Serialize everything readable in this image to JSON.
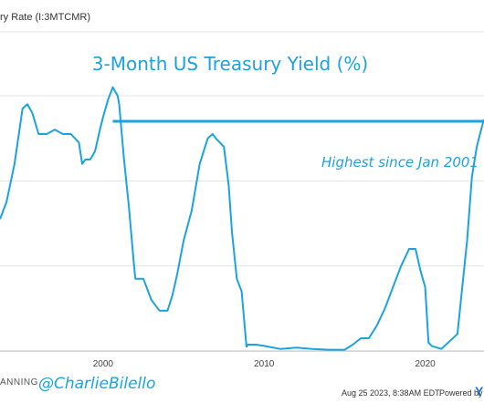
{
  "header": {
    "series_label": "ry Rate (I:3MTCMR)"
  },
  "chart_data": {
    "type": "line",
    "title": "3-Month US Treasury Yield (%)",
    "annotation": "Highest since Jan 2001",
    "reference_line_y": 5.4,
    "xlabel": "",
    "ylabel": "",
    "x_ticks": [
      "2000",
      "2010",
      "2020"
    ],
    "xlim": [
      1993.6,
      2023.65
    ],
    "ylim": [
      0,
      7.5
    ],
    "grid": true,
    "line_color": "#1aa3df",
    "series": [
      {
        "x": [
          1993.6,
          1994.0,
          1994.5,
          1995.0,
          1995.3,
          1995.6,
          1996.0,
          1996.5,
          1997.0,
          1997.5,
          1998.0,
          1998.5,
          1998.7,
          1998.9,
          1999.2,
          1999.5,
          1999.8,
          2000.0,
          2000.3,
          2000.6,
          2000.9,
          2001.0,
          2001.3,
          2001.6,
          2001.9,
          2002.0,
          2002.5,
          2003.0,
          2003.5,
          2004.0,
          2004.3,
          2004.6,
          2005.0,
          2005.5,
          2006.0,
          2006.5,
          2006.8,
          2007.0,
          2007.5,
          2007.8,
          2008.0,
          2008.3,
          2008.6,
          2008.9,
          2009.0,
          2009.5,
          2010.0,
          2011.0,
          2012.0,
          2013.0,
          2014.0,
          2015.0,
          2015.5,
          2016.0,
          2016.5,
          2017.0,
          2017.5,
          2018.0,
          2018.5,
          2019.0,
          2019.4,
          2019.7,
          2020.0,
          2020.2,
          2020.4,
          2021.0,
          2022.0,
          2022.3,
          2022.6,
          2022.9,
          2023.2,
          2023.4,
          2023.65
        ],
        "y": [
          3.1,
          3.5,
          4.4,
          5.7,
          5.8,
          5.6,
          5.1,
          5.1,
          5.2,
          5.1,
          5.1,
          4.9,
          4.4,
          4.5,
          4.5,
          4.7,
          5.2,
          5.5,
          5.9,
          6.2,
          6.0,
          5.8,
          4.5,
          3.4,
          2.1,
          1.7,
          1.7,
          1.2,
          0.95,
          0.95,
          1.3,
          1.8,
          2.6,
          3.3,
          4.4,
          5.0,
          5.1,
          5.0,
          4.8,
          3.9,
          2.8,
          1.7,
          1.4,
          0.1,
          0.15,
          0.15,
          0.12,
          0.05,
          0.08,
          0.05,
          0.03,
          0.03,
          0.15,
          0.3,
          0.3,
          0.6,
          1.0,
          1.5,
          2.0,
          2.4,
          2.4,
          1.9,
          1.5,
          0.2,
          0.12,
          0.05,
          0.4,
          1.5,
          2.6,
          4.1,
          4.8,
          5.1,
          5.45
        ]
      }
    ]
  },
  "footer": {
    "brand_partial": "ANNING",
    "handle": "@CharlieBilello",
    "timestamp": "Aug 25 2023, 8:38AM EDT.",
    "powered_by": "Powered by",
    "brand_letter": "Y"
  }
}
